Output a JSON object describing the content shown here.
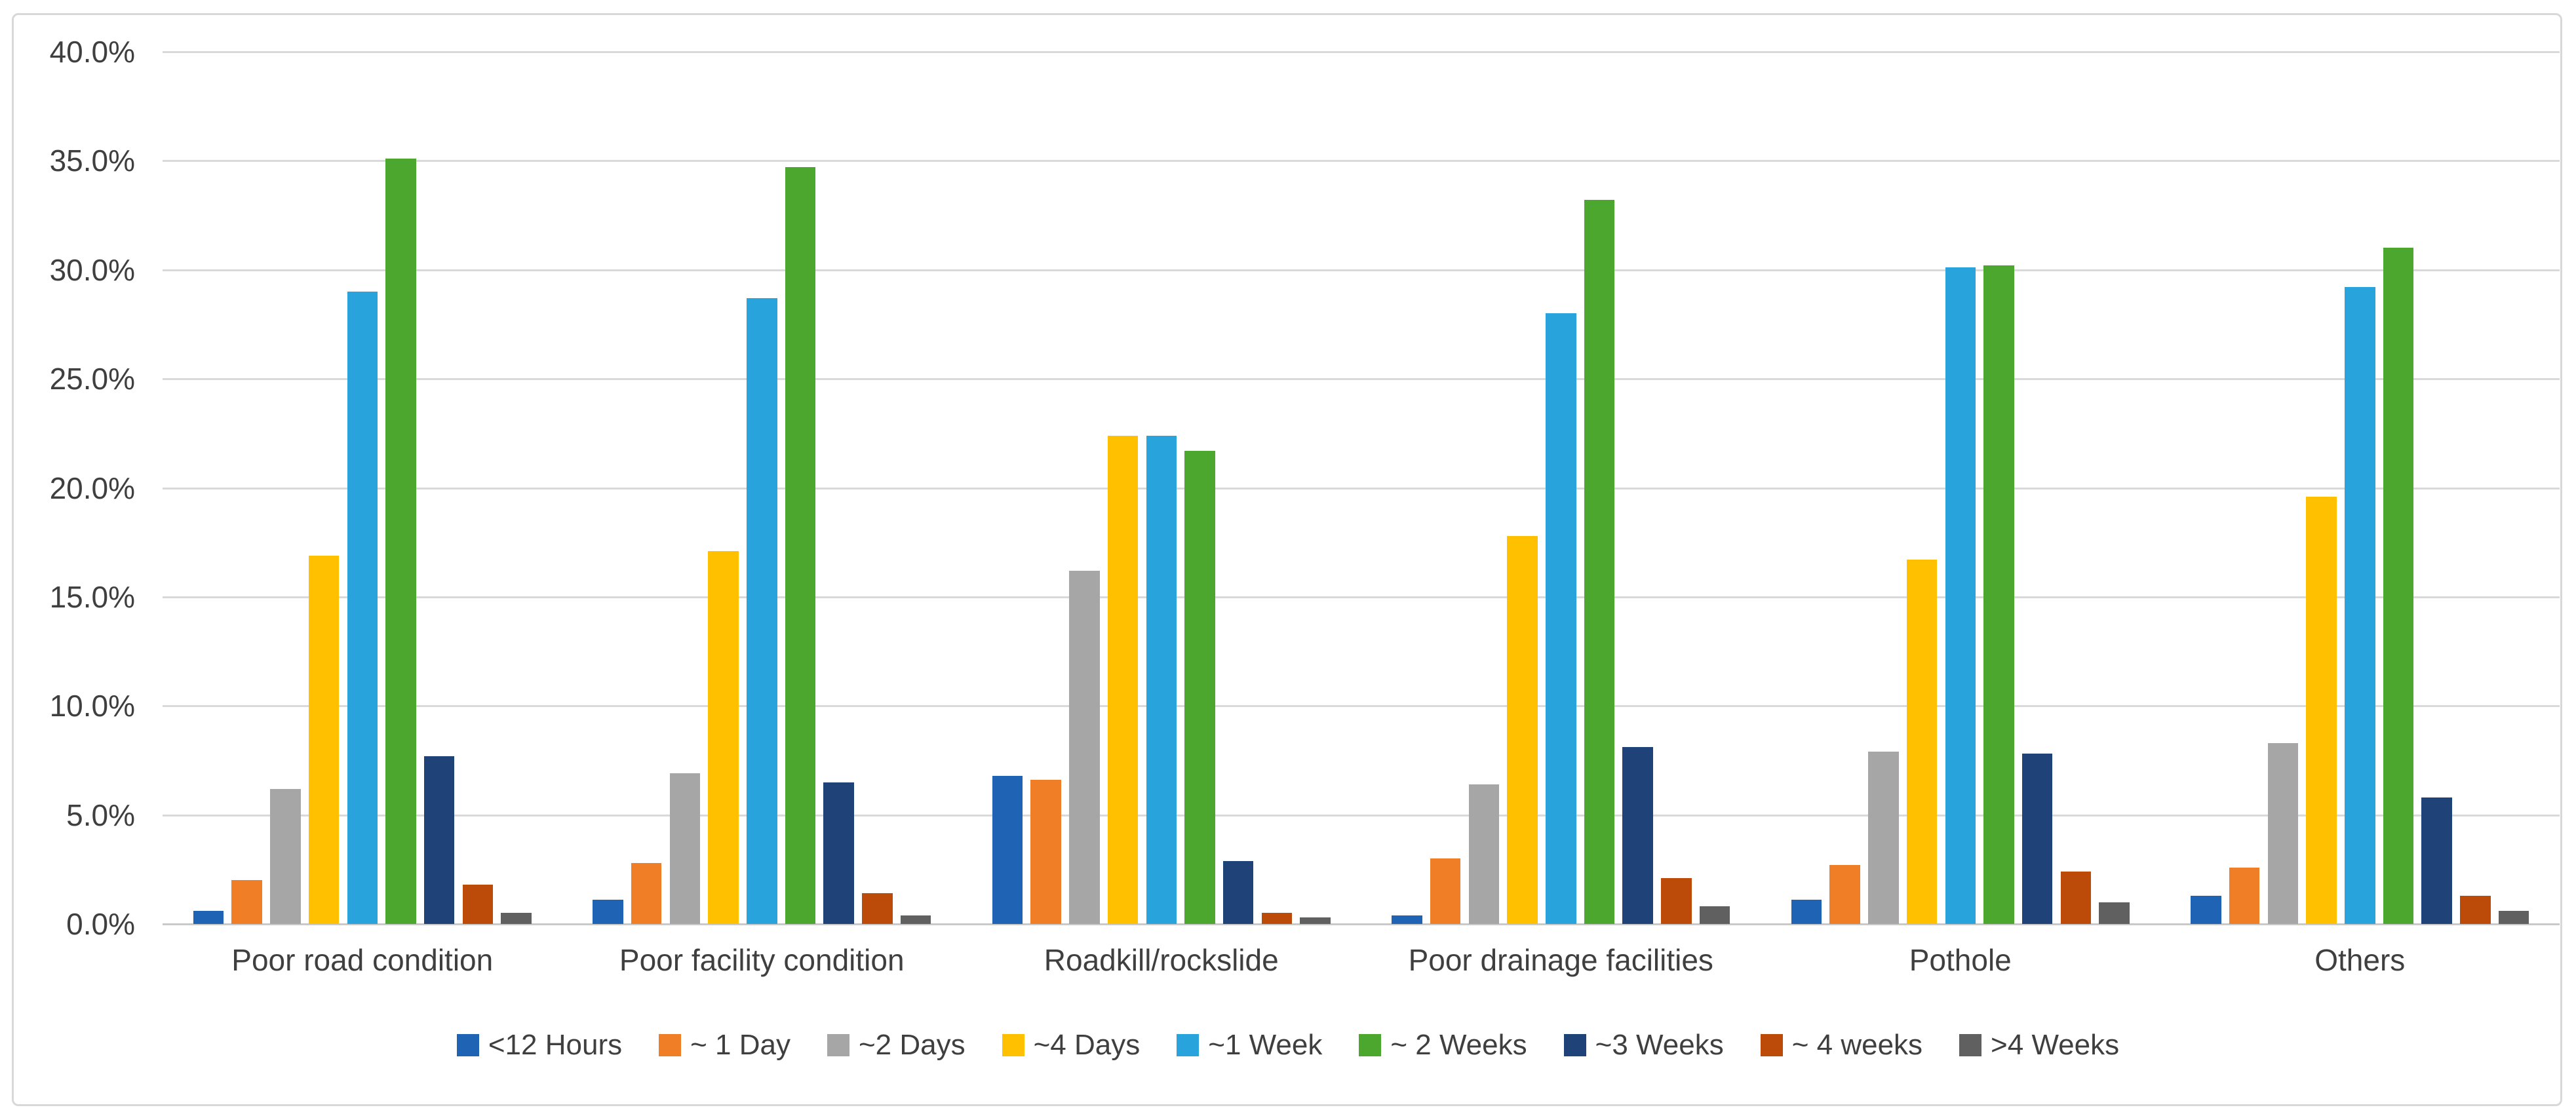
{
  "figure": {
    "background": "#FFFFFF",
    "border_color": "#D8D8D8",
    "gridline_color": "#D9D9D9",
    "axis_text_color": "#3F3F3F"
  },
  "chart_data": {
    "type": "bar",
    "title": "",
    "xlabel": "",
    "ylabel": "",
    "ylim": [
      0,
      40
    ],
    "grid": true,
    "legend_position": "bottom",
    "value_unit": "percent",
    "y_ticks_top_to_bottom": [
      "40.0%",
      "35.0%",
      "30.0%",
      "25.0%",
      "20.0%",
      "15.0%",
      "10.0%",
      "5.0%",
      "0.0%"
    ],
    "categories": [
      "Poor road condition",
      "Poor facility condition",
      "Roadkill/rockslide",
      "Poor drainage facilities",
      "Pothole",
      "Others"
    ],
    "series": [
      {
        "name": "<12 Hours",
        "color": "#1F64B4",
        "values": [
          0.6,
          1.1,
          6.8,
          0.4,
          1.1,
          1.3
        ]
      },
      {
        "name": "~ 1 Day",
        "color": "#F07E26",
        "values": [
          2.0,
          2.8,
          6.6,
          3.0,
          2.7,
          2.6
        ]
      },
      {
        "name": "~2 Days",
        "color": "#A6A6A6",
        "values": [
          6.2,
          6.9,
          16.2,
          6.4,
          7.9,
          8.3
        ]
      },
      {
        "name": "~4 Days",
        "color": "#FFC000",
        "values": [
          16.9,
          17.1,
          22.4,
          17.8,
          16.7,
          19.6
        ]
      },
      {
        "name": "~1 Week",
        "color": "#29A3DC",
        "values": [
          29.0,
          28.7,
          22.4,
          28.0,
          30.1,
          29.2
        ]
      },
      {
        "name": "~ 2 Weeks",
        "color": "#4CA72F",
        "values": [
          35.1,
          34.7,
          21.7,
          33.2,
          30.2,
          31.0
        ]
      },
      {
        "name": "~3 Weeks",
        "color": "#1F4379",
        "values": [
          7.7,
          6.5,
          2.9,
          8.1,
          7.8,
          5.8
        ]
      },
      {
        "name": "~ 4 weeks",
        "color": "#BC4B09",
        "values": [
          1.8,
          1.4,
          0.5,
          2.1,
          2.4,
          1.3
        ]
      },
      {
        "name": ">4 Weeks",
        "color": "#606060",
        "values": [
          0.5,
          0.4,
          0.3,
          0.8,
          1.0,
          0.6
        ]
      }
    ]
  }
}
